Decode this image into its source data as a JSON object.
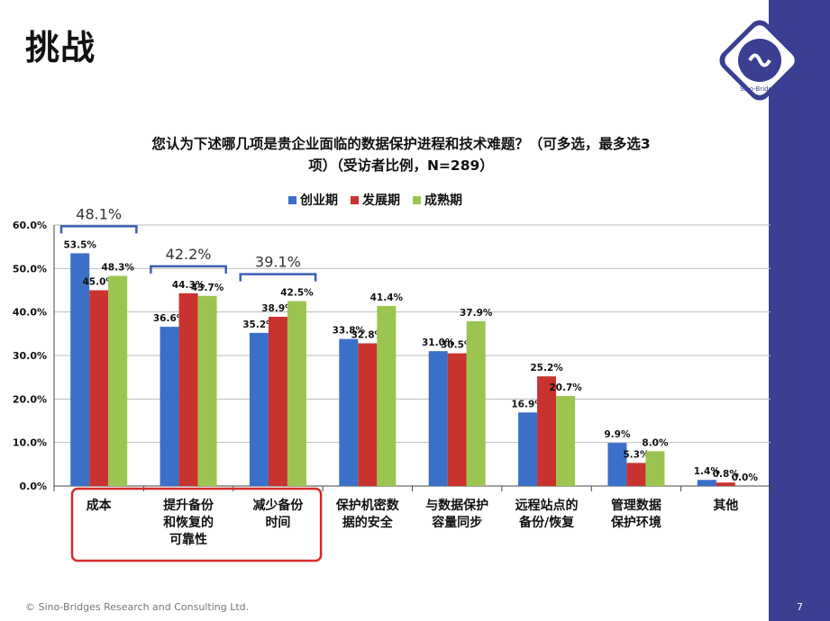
{
  "slide": {
    "title": "挑战",
    "footer": "© Sino-Bridges Research and Consulting Ltd.",
    "page_number": "7",
    "logo_text": "Sino-Bridges"
  },
  "colors": {
    "series_blue": "#3a70c8",
    "series_red": "#c8322f",
    "series_green": "#9bc550",
    "highlight_red": "#d42a2a",
    "bracket_blue": "#3a5fb5",
    "sidebar": "#3a3f92"
  },
  "chart_data": {
    "type": "bar",
    "title_line1": "您认为下述哪几项是贵企业面临的数据保护进程和技术难题？（可多选，最多选3",
    "title_line2": "项）（受访者比例，N=289）",
    "categories": [
      [
        "成本"
      ],
      [
        "提升备份",
        "和恢复的",
        "可靠性"
      ],
      [
        "减少备份",
        "时间"
      ],
      [
        "保护机密数",
        "据的安全"
      ],
      [
        "与数据保护",
        "容量同步"
      ],
      [
        "远程站点的",
        "备份/恢复"
      ],
      [
        "管理数据",
        "保护环境"
      ],
      [
        "其他"
      ]
    ],
    "series": [
      {
        "name": "创业期",
        "values": [
          53.5,
          36.6,
          35.2,
          33.8,
          31.0,
          16.9,
          9.9,
          1.4
        ],
        "labels": [
          "53.5%",
          "36.6%",
          "35.2%",
          "33.8%",
          "31.0%",
          "16.9%",
          "9.9%",
          "1.4%"
        ]
      },
      {
        "name": "发展期",
        "values": [
          45.0,
          44.3,
          38.9,
          32.8,
          30.5,
          25.2,
          5.3,
          0.8
        ],
        "labels": [
          "45.0%",
          "44.3%",
          "38.9%",
          "32.8%",
          "30.5%",
          "25.2%",
          "5.3%",
          "0.8%"
        ]
      },
      {
        "name": "成熟期",
        "values": [
          48.3,
          43.7,
          42.5,
          41.4,
          37.9,
          20.7,
          8.0,
          0.0
        ],
        "labels": [
          "48.3%",
          "43.7%",
          "42.5%",
          "41.4%",
          "37.9%",
          "20.7%",
          "8.0%",
          "0.0%"
        ]
      }
    ],
    "y_ticks": [
      "0.0%",
      "10.0%",
      "20.0%",
      "30.0%",
      "40.0%",
      "50.0%",
      "60.0%"
    ],
    "ylim": [
      0,
      60
    ],
    "grid": true,
    "legend_position": "top-center",
    "bracket_annotations": [
      {
        "category_index": 0,
        "label": "48.1%"
      },
      {
        "category_index": 1,
        "label": "42.2%"
      },
      {
        "category_index": 2,
        "label": "39.1%"
      }
    ],
    "highlighted_categories": [
      0,
      1,
      2
    ]
  }
}
